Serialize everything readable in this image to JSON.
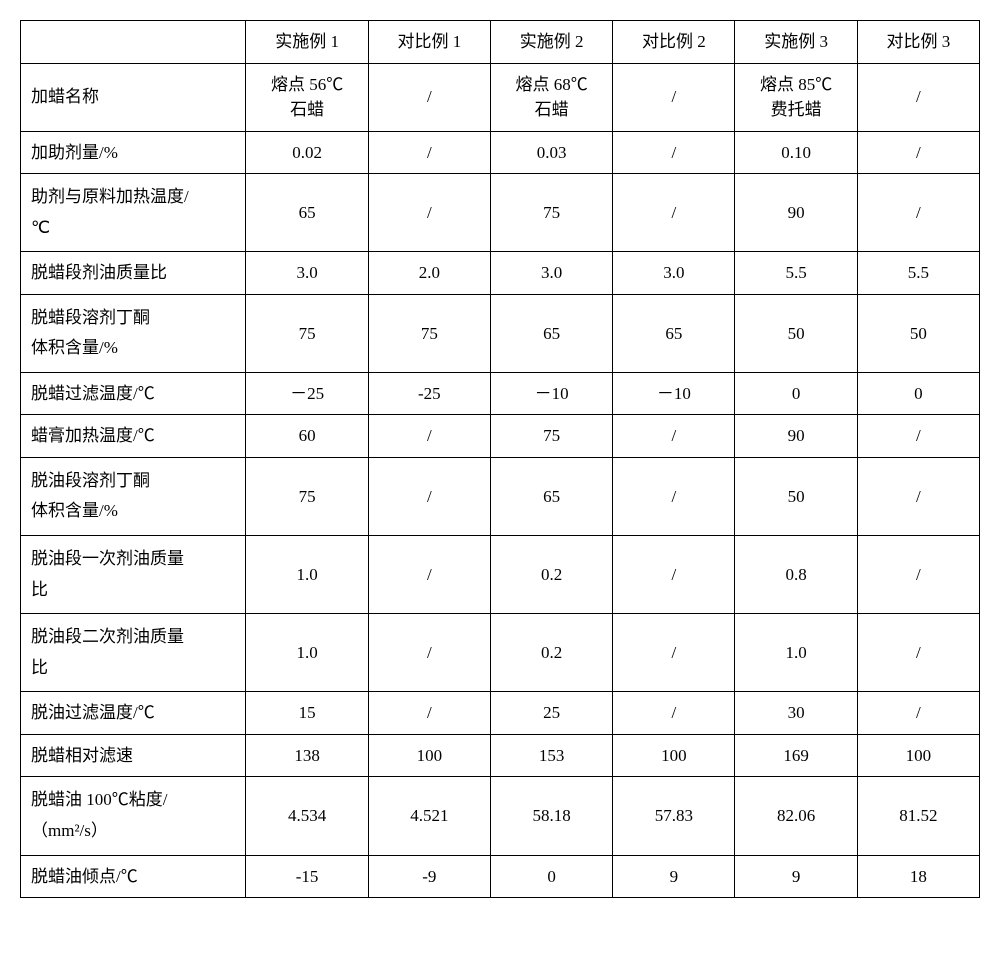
{
  "table": {
    "columns": [
      "",
      "实施例 1",
      "对比例 1",
      "实施例 2",
      "对比例 2",
      "实施例 3",
      "对比例 3"
    ],
    "rows": [
      {
        "label": "加蜡名称",
        "multiline": false,
        "cells": [
          "熔点 56℃\n石蜡",
          "/",
          "熔点 68℃\n石蜡",
          "/",
          "熔点 85℃\n费托蜡",
          "/"
        ]
      },
      {
        "label": "加助剂量/%",
        "multiline": false,
        "cells": [
          "0.02",
          "/",
          "0.03",
          "/",
          "0.10",
          "/"
        ]
      },
      {
        "label": "助剂与原料加热温度/\n℃",
        "multiline": true,
        "cells": [
          "65",
          "/",
          "75",
          "/",
          "90",
          "/"
        ]
      },
      {
        "label": "脱蜡段剂油质量比",
        "multiline": false,
        "cells": [
          "3.0",
          "2.0",
          "3.0",
          "3.0",
          "5.5",
          "5.5"
        ]
      },
      {
        "label": "脱蜡段溶剂丁酮\n体积含量/%",
        "multiline": true,
        "cells": [
          "75",
          "75",
          "65",
          "65",
          "50",
          "50"
        ]
      },
      {
        "label": "脱蜡过滤温度/℃",
        "multiline": false,
        "cells": [
          "－25",
          "-25",
          "－10",
          "－10",
          "0",
          "0"
        ]
      },
      {
        "label": "蜡膏加热温度/℃",
        "multiline": false,
        "cells": [
          "60",
          "/",
          "75",
          "/",
          "90",
          "/"
        ]
      },
      {
        "label": "脱油段溶剂丁酮\n体积含量/%",
        "multiline": true,
        "cells": [
          "75",
          "/",
          "65",
          "/",
          "50",
          "/"
        ]
      },
      {
        "label": "脱油段一次剂油质量\n比",
        "multiline": true,
        "cells": [
          "1.0",
          "/",
          "0.2",
          "/",
          "0.8",
          "/"
        ]
      },
      {
        "label": "脱油段二次剂油质量\n比",
        "multiline": true,
        "cells": [
          "1.0",
          "/",
          "0.2",
          "/",
          "1.0",
          "/"
        ]
      },
      {
        "label": "脱油过滤温度/℃",
        "multiline": false,
        "cells": [
          "15",
          "/",
          "25",
          "/",
          "30",
          "/"
        ]
      },
      {
        "label": "脱蜡相对滤速",
        "multiline": false,
        "cells": [
          "138",
          "100",
          "153",
          "100",
          "169",
          "100"
        ]
      },
      {
        "label": "脱蜡油  100℃粘度/\n（mm²/s）",
        "multiline": true,
        "cells": [
          "4.534",
          "4.521",
          "58.18",
          "57.83",
          "82.06",
          "81.52"
        ]
      },
      {
        "label": "脱蜡油倾点/℃",
        "multiline": false,
        "cells": [
          "-15",
          "-9",
          "0",
          "9",
          "9",
          "18"
        ]
      }
    ]
  }
}
